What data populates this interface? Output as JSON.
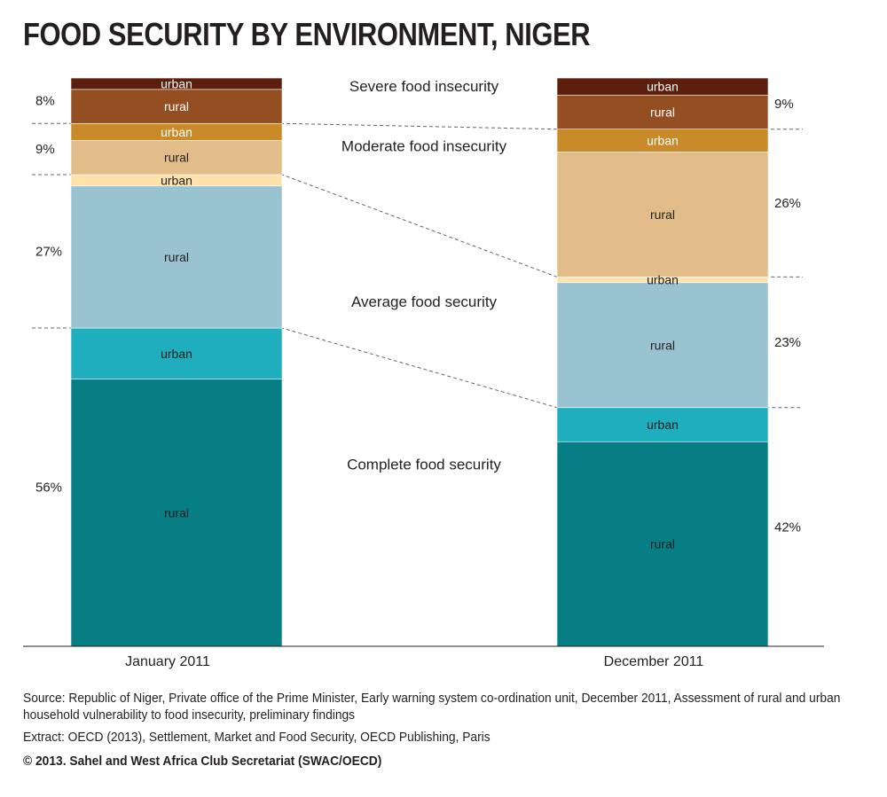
{
  "title": "FOOD SECURITY BY ENVIRONMENT, NIGER",
  "chart_data": {
    "type": "bar",
    "stacked": true,
    "categories": [
      "January 2011",
      "December 2011"
    ],
    "segment_labels": [
      "rural",
      "urban",
      "rural",
      "urban",
      "rural",
      "urban",
      "rural",
      "urban"
    ],
    "series": [
      {
        "label": "rural",
        "group": "Complete food security",
        "color": "#077d84",
        "values": [
          47,
          36
        ]
      },
      {
        "label": "urban",
        "group": "Complete food security",
        "color": "#1eaebd",
        "values": [
          9,
          6
        ]
      },
      {
        "label": "rural",
        "group": "Average food security",
        "color": "#99c3d1",
        "values": [
          25,
          22
        ]
      },
      {
        "label": "urban",
        "group": "Average food security",
        "color": "#fde3ab",
        "values": [
          2,
          1
        ]
      },
      {
        "label": "rural",
        "group": "Moderate food insecurity",
        "color": "#e2bd89",
        "values": [
          6,
          22
        ]
      },
      {
        "label": "urban",
        "group": "Moderate food insecurity",
        "color": "#c98a2a",
        "values": [
          3,
          4
        ]
      },
      {
        "label": "rural",
        "group": "Severe food insecurity",
        "color": "#934f22",
        "values": [
          6,
          6
        ]
      },
      {
        "label": "urban",
        "group": "Severe food insecurity",
        "color": "#5c1f0d",
        "values": [
          2,
          3
        ]
      }
    ],
    "groups": [
      "Complete food security",
      "Average food security",
      "Moderate food insecurity",
      "Severe food insecurity"
    ],
    "group_totals": {
      "January 2011": [
        "56%",
        "27%",
        "9%",
        "8%"
      ],
      "December 2011": [
        "42%",
        "23%",
        "26%",
        "9%"
      ]
    },
    "ylim": [
      0,
      100
    ],
    "grid": false
  },
  "notes": {
    "source": "Source: Republic of Niger, Private office of the Prime Minister, Early warning system co-ordination unit, December 2011, Assessment of rural and urban household vulnerability to food insecurity, preliminary findings",
    "extract": "Extract: OECD (2013), Settlement, Market and Food Security, OECD Publishing, Paris",
    "copyright": "© 2013. Sahel and West Africa Club Secretariat (SWAC/OECD)"
  }
}
